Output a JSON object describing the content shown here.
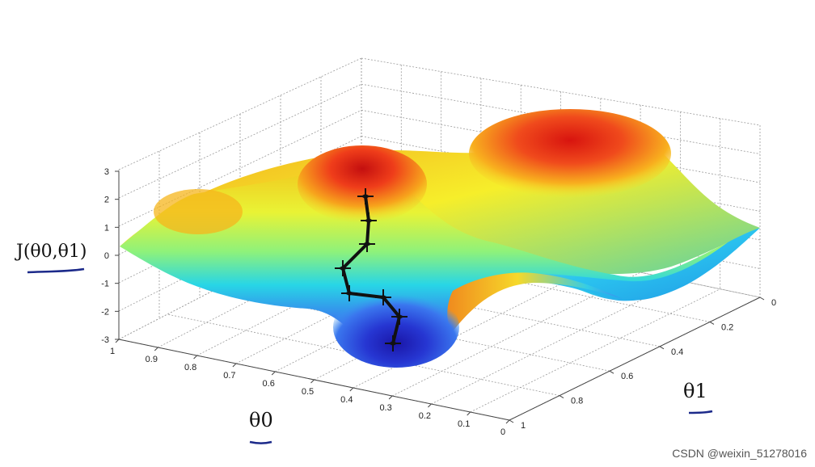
{
  "chart_data": {
    "type": "surface",
    "title": "",
    "xlabel": "θ0",
    "ylabel": "θ1",
    "zlabel": "J(θ0,θ1)",
    "x_ticks": [
      "1",
      "0.9",
      "0.8",
      "0.7",
      "0.6",
      "0.5",
      "0.4",
      "0.3",
      "0.2",
      "0.1",
      "0"
    ],
    "y_ticks": [
      "0",
      "0.2",
      "0.4",
      "0.6",
      "0.8",
      "1"
    ],
    "z_ticks": [
      "3",
      "2",
      "1",
      "0",
      "-1",
      "-2",
      "-3"
    ],
    "xlim": [
      0,
      1
    ],
    "ylim": [
      0,
      1
    ],
    "zlim": [
      -3,
      3
    ],
    "grid": true,
    "colormap": "jet",
    "descent_path": {
      "x": [
        0.63,
        0.62,
        0.6,
        0.58,
        0.46,
        0.38,
        0.3,
        0.28
      ],
      "y": [
        0.42,
        0.47,
        0.52,
        0.53,
        0.58,
        0.64,
        0.66,
        0.74
      ],
      "z": [
        2.1,
        1.1,
        0.3,
        -0.5,
        -1.3,
        -1.8,
        -2.4,
        -3.0
      ]
    }
  },
  "watermark": "CSDN @weixin_51278016"
}
